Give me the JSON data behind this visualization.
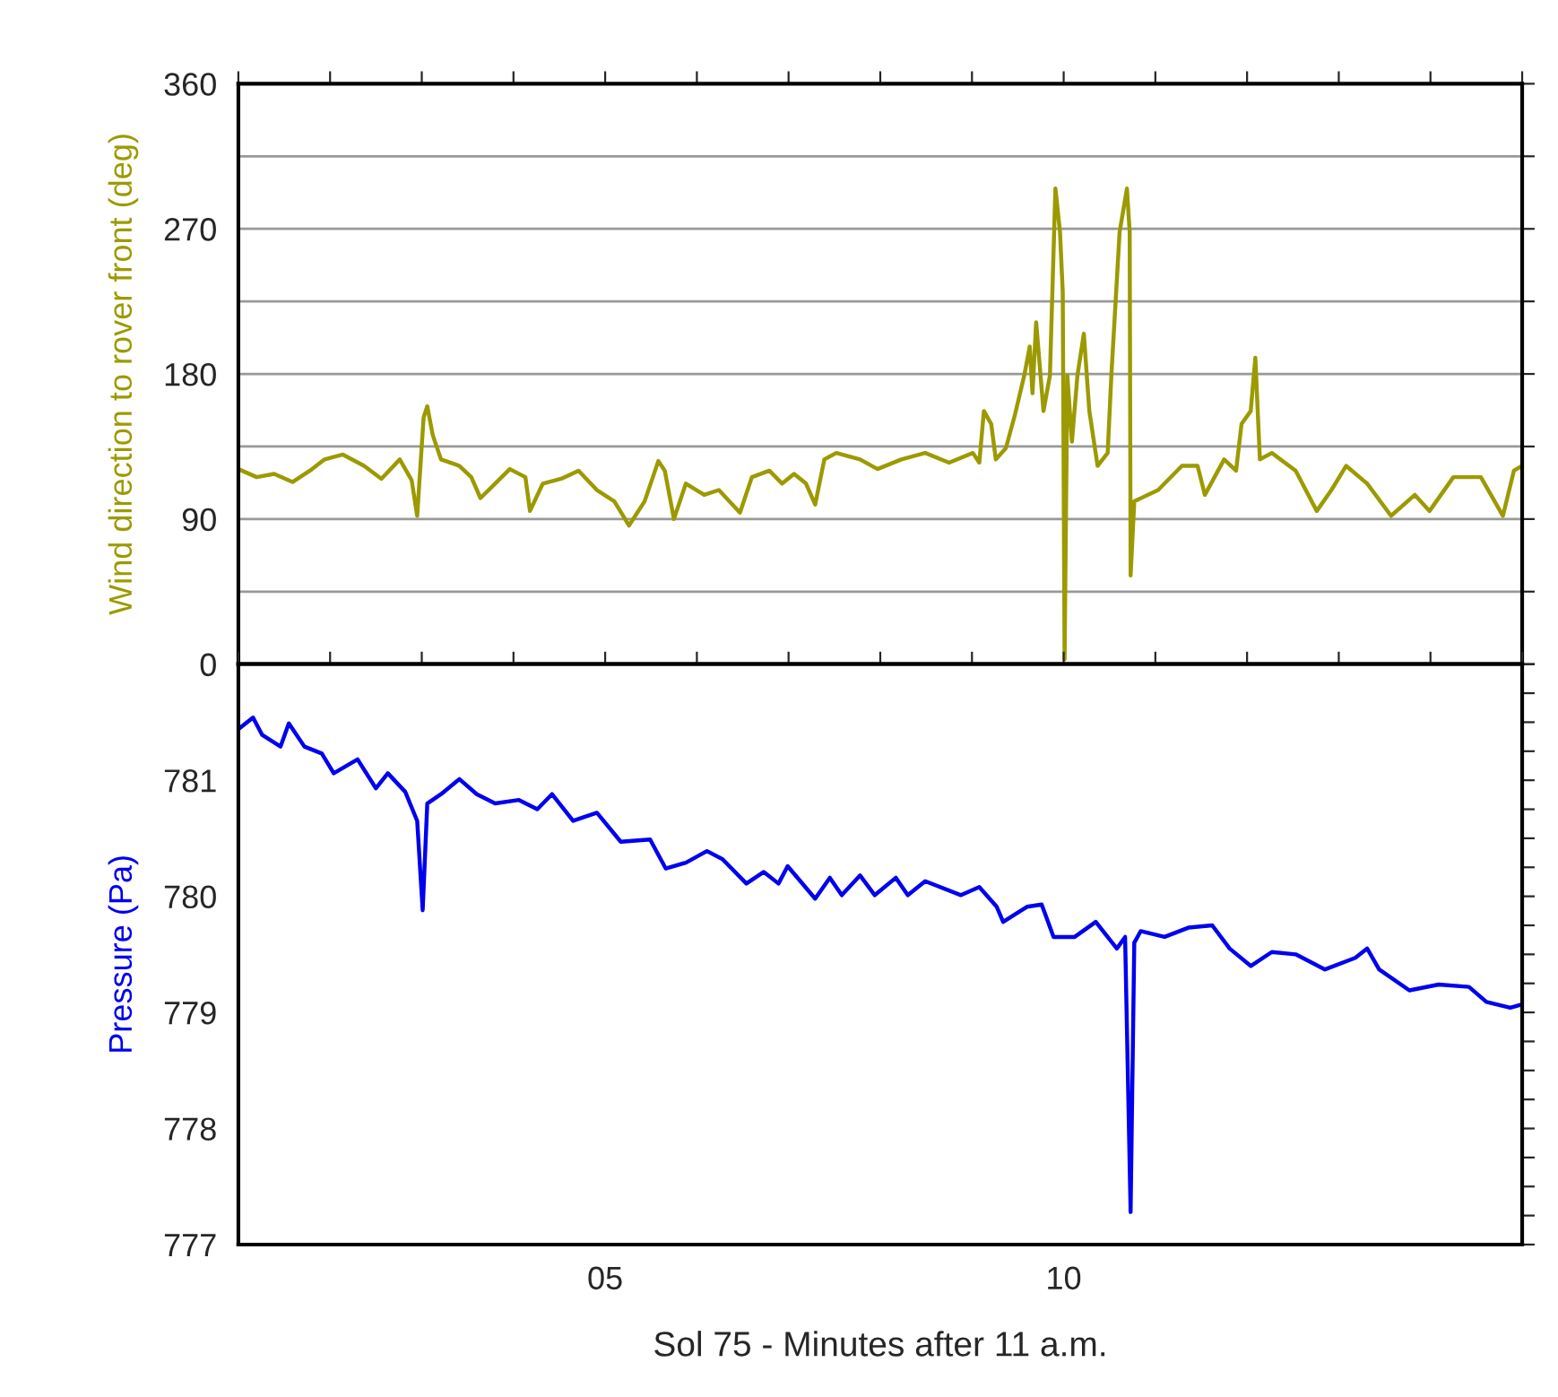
{
  "chart_data": [
    {
      "type": "line",
      "ylabel": "Wind direction to rover front (deg)",
      "xlim": [
        1,
        15
      ],
      "xticks": [
        {
          "value": 1,
          "label": null
        },
        {
          "value": 2,
          "label": null
        },
        {
          "value": 3,
          "label": null
        },
        {
          "value": 4,
          "label": null
        },
        {
          "value": 5,
          "label": null
        },
        {
          "value": 6,
          "label": null
        },
        {
          "value": 7,
          "label": null
        },
        {
          "value": 8,
          "label": null
        },
        {
          "value": 9,
          "label": null
        },
        {
          "value": 10,
          "label": null
        },
        {
          "value": 11,
          "label": null
        },
        {
          "value": 12,
          "label": null
        },
        {
          "value": 13,
          "label": null
        },
        {
          "value": 14,
          "label": null
        },
        {
          "value": 15,
          "label": null
        }
      ],
      "ylim": [
        0,
        360
      ],
      "yticks": [
        0,
        {
          "value": 45,
          "label": null
        },
        90,
        {
          "value": 135,
          "label": null
        },
        180,
        {
          "value": 225,
          "label": null
        },
        270,
        {
          "value": 315,
          "label": null
        },
        360
      ],
      "grid": "y",
      "tick_labels": "y",
      "legend": false,
      "series": [
        {
          "color": "#9c9a00",
          "x": [
            1.0,
            1.2,
            1.39,
            1.59,
            1.78,
            1.94,
            2.14,
            2.37,
            2.56,
            2.76,
            2.89,
            2.95,
            3.02,
            3.06,
            3.12,
            3.21,
            3.41,
            3.54,
            3.64,
            3.8,
            3.96,
            4.13,
            4.18,
            4.32,
            4.52,
            4.71,
            4.91,
            5.1,
            5.26,
            5.43,
            5.58,
            5.65,
            5.75,
            5.88,
            6.08,
            6.24,
            6.47,
            6.6,
            6.79,
            6.93,
            7.06,
            7.19,
            7.29,
            7.39,
            7.52,
            7.78,
            7.97,
            8.23,
            8.49,
            8.75,
            9.01,
            9.08,
            9.13,
            9.21,
            9.26,
            9.37,
            9.47,
            9.57,
            9.63,
            9.66,
            9.7,
            9.78,
            9.85,
            9.91,
            9.96,
            9.99,
            10.01,
            10.04,
            10.09,
            10.15,
            10.22,
            10.28,
            10.37,
            10.48,
            10.52,
            10.61,
            10.69,
            10.72,
            10.73,
            10.77,
            11.03,
            11.29,
            11.46,
            11.54,
            11.75,
            11.88,
            11.94,
            12.04,
            12.09,
            12.14,
            12.27,
            12.53,
            12.76,
            12.92,
            13.08,
            13.31,
            13.57,
            13.83,
            13.99,
            14.25,
            14.55,
            14.79,
            14.91,
            15.0
          ],
          "values": [
            121,
            116,
            118,
            113,
            120,
            127,
            130,
            123,
            115,
            127,
            114,
            92,
            153,
            160,
            142,
            127,
            123,
            116,
            103,
            112,
            121,
            116,
            95,
            112,
            115,
            120,
            108,
            101,
            86,
            101,
            126,
            120,
            90,
            112,
            105,
            108,
            94,
            116,
            120,
            112,
            118,
            112,
            99,
            127,
            131,
            127,
            121,
            127,
            131,
            125,
            131,
            125,
            157,
            149,
            127,
            134,
            155,
            179,
            197,
            168,
            212,
            157,
            179,
            295,
            268,
            231,
            3,
            179,
            138,
            179,
            205,
            157,
            123,
            131,
            179,
            268,
            295,
            268,
            55,
            101,
            108,
            123,
            123,
            105,
            127,
            120,
            149,
            157,
            190,
            127,
            131,
            120,
            95,
            108,
            123,
            112,
            92,
            105,
            95,
            116,
            116,
            92,
            120,
            123
          ]
        }
      ]
    },
    {
      "type": "line",
      "xlabel": "Sol 75 - Minutes after 11 a.m.",
      "ylabel": "Pressure (Pa)",
      "xlim": [
        1,
        15
      ],
      "xticks": [
        {
          "value": 1,
          "label": null
        },
        {
          "value": 2,
          "label": null
        },
        {
          "value": 3,
          "label": null
        },
        {
          "value": 4,
          "label": null
        },
        {
          "value": 5,
          "label": "05"
        },
        {
          "value": 6,
          "label": null
        },
        {
          "value": 7,
          "label": null
        },
        {
          "value": 8,
          "label": null
        },
        {
          "value": 9,
          "label": null
        },
        {
          "value": 10,
          "label": "10"
        },
        {
          "value": 11,
          "label": null
        },
        {
          "value": 12,
          "label": null
        },
        {
          "value": 13,
          "label": null
        },
        {
          "value": 14,
          "label": null
        },
        {
          "value": 15,
          "label": null
        }
      ],
      "ylim": [
        777,
        782
      ],
      "yticks": [
        777,
        {
          "value": 777.25,
          "label": null
        },
        {
          "value": 777.5,
          "label": null
        },
        {
          "value": 777.75,
          "label": null
        },
        778,
        {
          "value": 778.25,
          "label": null
        },
        {
          "value": 778.5,
          "label": null
        },
        {
          "value": 778.75,
          "label": null
        },
        779,
        {
          "value": 779.25,
          "label": null
        },
        {
          "value": 779.5,
          "label": null
        },
        {
          "value": 779.75,
          "label": null
        },
        780,
        {
          "value": 780.25,
          "label": null
        },
        {
          "value": 780.5,
          "label": null
        },
        {
          "value": 780.75,
          "label": null
        },
        781,
        {
          "value": 781.25,
          "label": null
        },
        {
          "value": 781.5,
          "label": null
        },
        {
          "value": 781.75,
          "label": null
        },
        {
          "value": 782,
          "label": null
        }
      ],
      "grid": false,
      "legend": false,
      "series": [
        {
          "color": "#0000ee",
          "x": [
            1.0,
            1.16,
            1.26,
            1.46,
            1.55,
            1.72,
            1.91,
            2.04,
            2.3,
            2.5,
            2.63,
            2.82,
            2.95,
            3.01,
            3.06,
            3.21,
            3.41,
            3.6,
            3.8,
            4.06,
            4.26,
            4.42,
            4.65,
            4.91,
            5.17,
            5.49,
            5.66,
            5.88,
            6.11,
            6.28,
            6.54,
            6.73,
            6.89,
            6.99,
            7.29,
            7.45,
            7.58,
            7.78,
            7.94,
            8.17,
            8.3,
            8.49,
            8.88,
            9.08,
            9.27,
            9.34,
            9.6,
            9.76,
            9.89,
            10.12,
            10.35,
            10.58,
            10.67,
            10.73,
            10.77,
            10.84,
            11.1,
            11.36,
            11.62,
            11.81,
            12.04,
            12.27,
            12.53,
            12.85,
            13.18,
            13.31,
            13.44,
            13.77,
            14.09,
            14.42,
            14.61,
            14.87,
            15.0
          ],
          "values": [
            781.44,
            781.54,
            781.39,
            781.29,
            781.49,
            781.29,
            781.23,
            781.06,
            781.18,
            780.93,
            781.06,
            780.9,
            780.65,
            779.88,
            780.8,
            780.88,
            781.01,
            780.88,
            780.8,
            780.83,
            780.75,
            780.88,
            780.65,
            780.72,
            780.47,
            780.49,
            780.24,
            780.29,
            780.39,
            780.32,
            780.11,
            780.21,
            780.11,
            780.26,
            779.98,
            780.16,
            780.01,
            780.18,
            780.01,
            780.16,
            780.01,
            780.13,
            780.01,
            780.08,
            779.91,
            779.78,
            779.91,
            779.93,
            779.65,
            779.65,
            779.78,
            779.55,
            779.65,
            777.28,
            779.6,
            779.7,
            779.65,
            779.73,
            779.75,
            779.55,
            779.4,
            779.52,
            779.5,
            779.37,
            779.47,
            779.55,
            779.37,
            779.19,
            779.24,
            779.22,
            779.09,
            779.04,
            779.07
          ]
        }
      ]
    }
  ]
}
